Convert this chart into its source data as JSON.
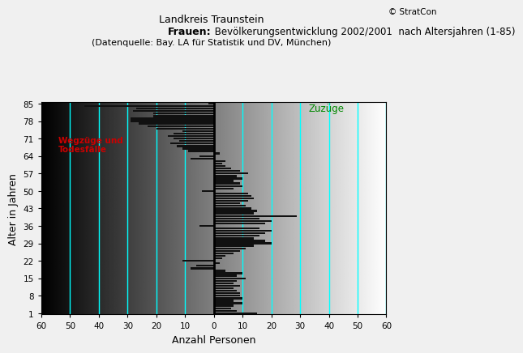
{
  "title_line1": "Landkreis Traunstein",
  "title_line2_bold": "Frauen:",
  "title_line2_rest": " Bevölkerungsentwicklung 2002/2001  nach Altersjahren (1-85)",
  "title_line3": "(Datenquelle: Bay. LA für Statistik und DV, München)",
  "xlabel": "Anzahl Personen",
  "ylabel": "Alter in Jahren",
  "copyright": "© StratCon",
  "label_wegzuege": "Wegzüge und\nTodesfälle",
  "label_zuzuege": "Zuzüge",
  "label_wegzuege_color": "#cc0000",
  "label_zuzuege_color": "#008800",
  "xlim_min": -60,
  "xlim_max": 60,
  "ylim_min": 0.5,
  "ylim_max": 85.5,
  "xticks": [
    -60,
    -50,
    -40,
    -30,
    -20,
    -10,
    0,
    10,
    20,
    30,
    40,
    50,
    60
  ],
  "xticklabels": [
    "60",
    "50",
    "40",
    "30",
    "20",
    "10",
    "0",
    "10",
    "20",
    "30",
    "40",
    "50",
    "60"
  ],
  "yticks": [
    1,
    8,
    15,
    22,
    29,
    36,
    43,
    50,
    57,
    64,
    71,
    78,
    85
  ],
  "cyan_lines_x": [
    -50,
    -40,
    -30,
    -20,
    -10,
    10,
    20,
    30,
    40,
    50,
    60
  ],
  "bar_color": "#111111",
  "bar_height": 0.75,
  "fig_bg": "#f0f0f0",
  "values": [
    15,
    8,
    6,
    7,
    10,
    7,
    10,
    9,
    9,
    8,
    7,
    9,
    7,
    8,
    11,
    8,
    10,
    4,
    -8,
    -6,
    2,
    -11,
    3,
    4,
    7,
    9,
    11,
    14,
    20,
    18,
    14,
    16,
    18,
    20,
    16,
    -5,
    18,
    20,
    16,
    29,
    14,
    15,
    13,
    11,
    9,
    12,
    14,
    13,
    12,
    -4,
    7,
    10,
    9,
    7,
    10,
    8,
    12,
    9,
    6,
    4,
    3,
    4,
    -8,
    -5,
    2,
    -9,
    -11,
    -13,
    -15,
    -12,
    -14,
    -16,
    -14,
    -11,
    -20,
    -23,
    -26,
    -29,
    -29,
    -21,
    -21,
    -28,
    -27,
    -45,
    -2
  ]
}
